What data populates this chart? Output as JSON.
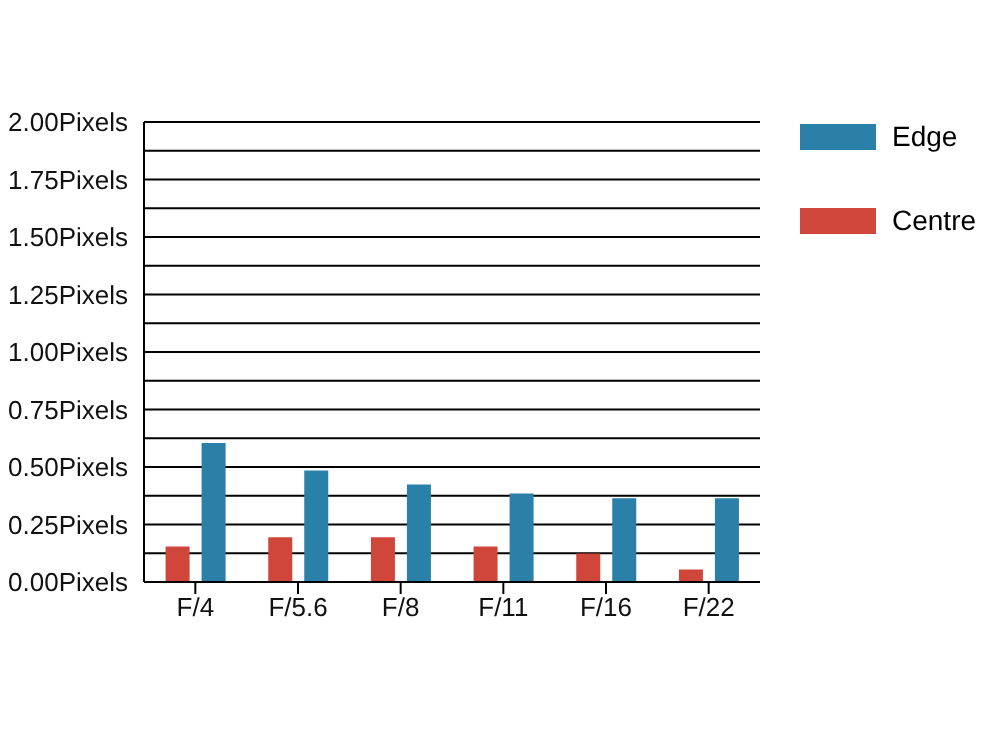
{
  "chart_data": {
    "type": "bar",
    "categories": [
      "F/4",
      "F/5.6",
      "F/8",
      "F/11",
      "F/16",
      "F/22"
    ],
    "series": [
      {
        "name": "Centre",
        "color": "#d0463b",
        "values": [
          0.15,
          0.19,
          0.19,
          0.15,
          0.12,
          0.05
        ]
      },
      {
        "name": "Edge",
        "color": "#2b80aa",
        "values": [
          0.6,
          0.48,
          0.42,
          0.38,
          0.36,
          0.36
        ]
      }
    ],
    "ylim": [
      0,
      2
    ],
    "yticks": [
      {
        "value": 0,
        "label": "0.00Pixels"
      },
      {
        "value": 0.125,
        "label": null
      },
      {
        "value": 0.25,
        "label": "0.25Pixels"
      },
      {
        "value": 0.375,
        "label": null
      },
      {
        "value": 0.5,
        "label": "0.50Pixels"
      },
      {
        "value": 0.625,
        "label": null
      },
      {
        "value": 0.75,
        "label": "0.75Pixels"
      },
      {
        "value": 0.875,
        "label": null
      },
      {
        "value": 1,
        "label": "1.00Pixels"
      },
      {
        "value": 1.125,
        "label": null
      },
      {
        "value": 1.25,
        "label": "1.25Pixels"
      },
      {
        "value": 1.375,
        "label": null
      },
      {
        "value": 1.5,
        "label": "1.50Pixels"
      },
      {
        "value": 1.625,
        "label": null
      },
      {
        "value": 1.75,
        "label": "1.75Pixels"
      },
      {
        "value": 1.875,
        "label": null
      },
      {
        "value": 2,
        "label": "2.00Pixels"
      }
    ],
    "grid": "y",
    "legend": "top right"
  }
}
